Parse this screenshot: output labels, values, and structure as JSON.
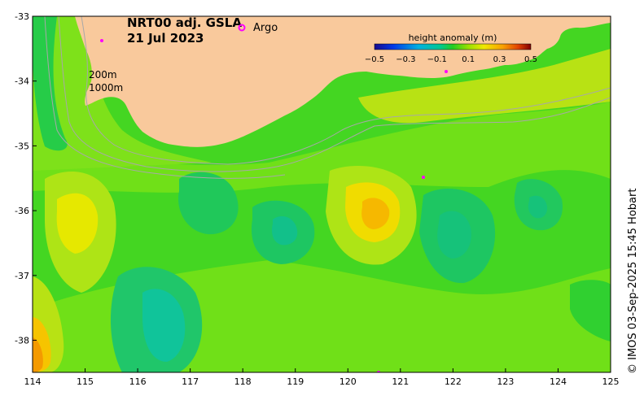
{
  "map": {
    "product": "NRT00 adj. GSLA",
    "date": "21 Jul 2023",
    "argo_label": "Argo",
    "contour_200": "200m",
    "contour_1000": "1000m",
    "credit": "© IMOS 03-Sep-2025 15:45 Hobart",
    "lon_ticks": [
      "114",
      "115",
      "116",
      "117",
      "118",
      "119",
      "120",
      "121",
      "122",
      "123",
      "124",
      "125"
    ],
    "lat_ticks": [
      "-33",
      "-34",
      "-35",
      "-36",
      "-37",
      "-38"
    ],
    "colorbar": {
      "title": "height anomaly (m)",
      "ticks": [
        "−0.5",
        "−0.3",
        "−0.1",
        "0.1",
        "0.3",
        "0.5"
      ],
      "min": -0.5,
      "max": 0.5
    },
    "colors": {
      "land": "#F9C99C",
      "argo_marker": "#FF00FF",
      "contour_line": "#A8A8A8"
    }
  }
}
